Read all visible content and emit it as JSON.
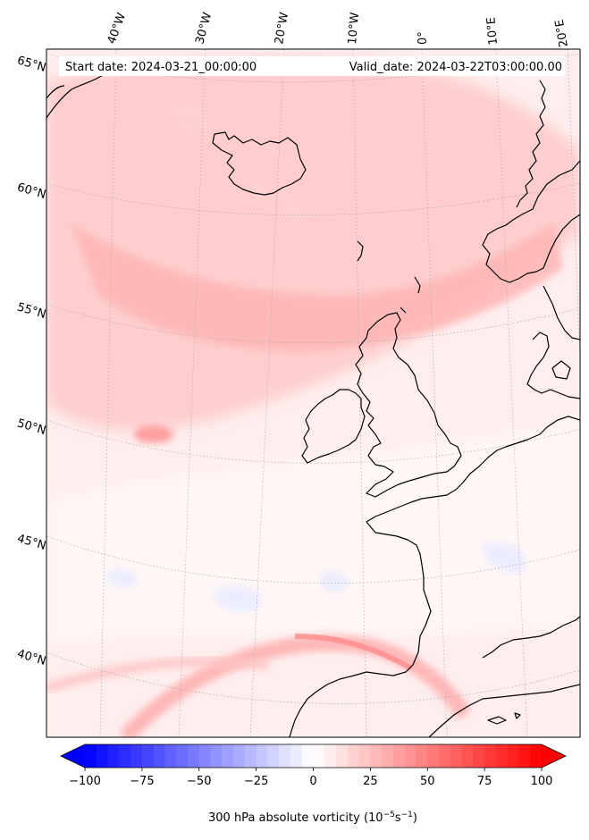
{
  "header": {
    "start_date": "Start date: 2024-03-21_00:00:00",
    "valid_date": "Valid_date: 2024-03-22T03:00:00.00"
  },
  "map": {
    "projection": "lambert-conformal",
    "variable": "300 hPa absolute vorticity",
    "longitude_labels": [
      "40°W",
      "30°W",
      "20°W",
      "10°W",
      "0°",
      "10°E",
      "20°E"
    ],
    "latitude_labels": [
      "65°N",
      "60°N",
      "55°N",
      "50°N",
      "45°N",
      "40°N"
    ],
    "features": [
      "Iceland",
      "Ireland",
      "Great Britain",
      "Norway",
      "Denmark",
      "France",
      "Iberian Peninsula",
      "North Africa coast"
    ]
  },
  "colorbar": {
    "ticks": [
      "−100",
      "−75",
      "−50",
      "−25",
      "0",
      "25",
      "50",
      "75",
      "100"
    ],
    "tick_values": [
      -100,
      -75,
      -50,
      -25,
      0,
      25,
      50,
      75,
      100
    ],
    "range": [
      -100,
      100
    ],
    "label_main": "300 hPa absolute vorticity (10",
    "label_exp1": "−5",
    "label_mid": "s",
    "label_exp2": "−1",
    "label_end": ")",
    "colormap": "bwr",
    "color_low": "#0000ff",
    "color_mid": "#ffffff",
    "color_high": "#ff0000"
  }
}
